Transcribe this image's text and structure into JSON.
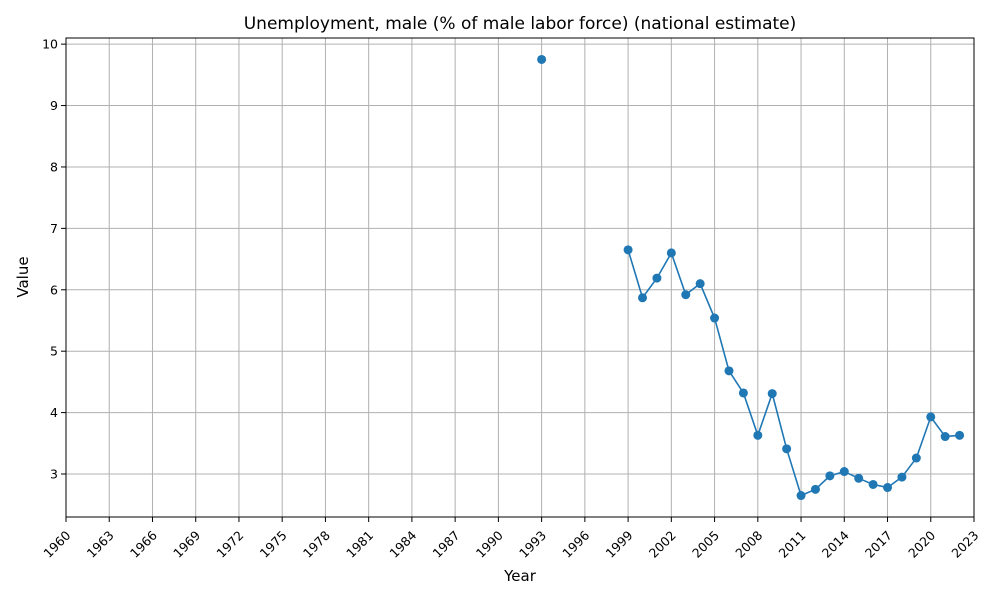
{
  "chart_data": {
    "type": "line",
    "title": "Unemployment, male (% of male labor force) (national estimate)",
    "xlabel": "Year",
    "ylabel": "Value",
    "xlim": [
      1960,
      2023
    ],
    "ylim": [
      2.3,
      10.1
    ],
    "xticks": [
      1960,
      1963,
      1966,
      1969,
      1972,
      1975,
      1978,
      1981,
      1984,
      1987,
      1990,
      1993,
      1996,
      1999,
      2002,
      2005,
      2008,
      2011,
      2014,
      2017,
      2020,
      2023
    ],
    "yticks": [
      3,
      4,
      5,
      6,
      7,
      8,
      9,
      10
    ],
    "grid": true,
    "color": "#1f77b4",
    "points": [
      {
        "x": 1993,
        "y": 9.75
      },
      {
        "x": 1999,
        "y": 6.65
      },
      {
        "x": 2000,
        "y": 5.87
      },
      {
        "x": 2001,
        "y": 6.19
      },
      {
        "x": 2002,
        "y": 6.6
      },
      {
        "x": 2003,
        "y": 5.92
      },
      {
        "x": 2004,
        "y": 6.1
      },
      {
        "x": 2005,
        "y": 5.54
      },
      {
        "x": 2006,
        "y": 4.68
      },
      {
        "x": 2007,
        "y": 4.32
      },
      {
        "x": 2008,
        "y": 3.63
      },
      {
        "x": 2009,
        "y": 4.31
      },
      {
        "x": 2010,
        "y": 3.41
      },
      {
        "x": 2011,
        "y": 2.65
      },
      {
        "x": 2012,
        "y": 2.75
      },
      {
        "x": 2013,
        "y": 2.97
      },
      {
        "x": 2014,
        "y": 3.04
      },
      {
        "x": 2015,
        "y": 2.93
      },
      {
        "x": 2016,
        "y": 2.83
      },
      {
        "x": 2017,
        "y": 2.78
      },
      {
        "x": 2018,
        "y": 2.95
      },
      {
        "x": 2019,
        "y": 3.26
      },
      {
        "x": 2020,
        "y": 3.93
      },
      {
        "x": 2021,
        "y": 3.61
      },
      {
        "x": 2022,
        "y": 3.63
      }
    ]
  }
}
